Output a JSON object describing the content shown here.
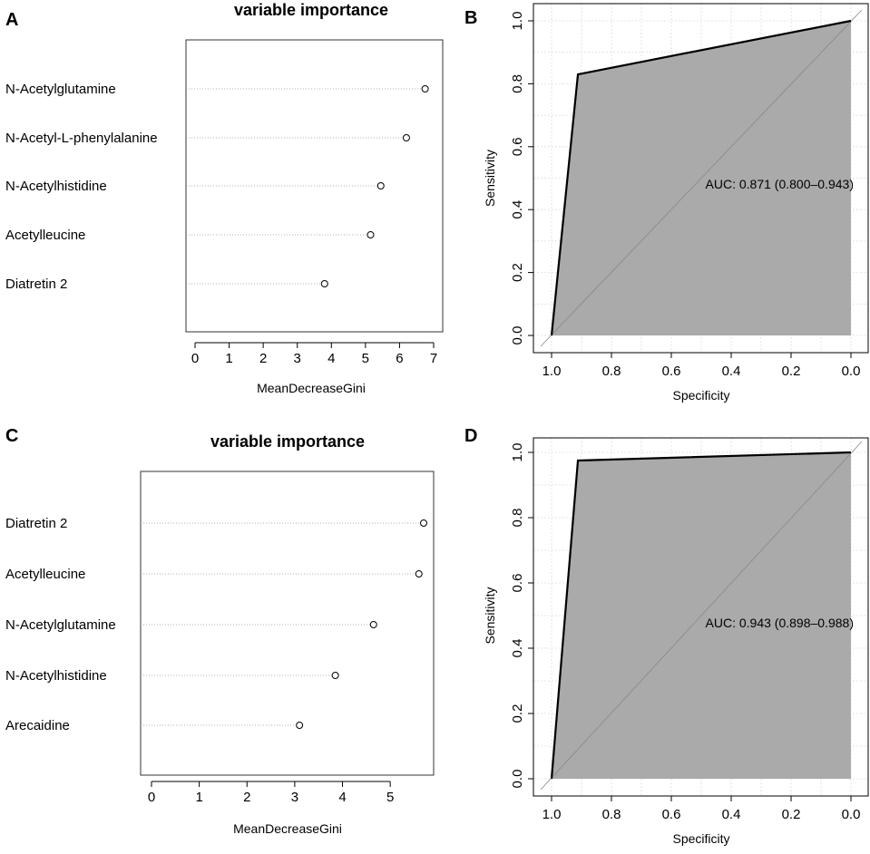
{
  "chart_data": [
    {
      "panel": "A",
      "type": "scatter",
      "title": "variable importance",
      "xlabel": "MeanDecreaseGini",
      "ylabel": "",
      "xlim": [
        0,
        7
      ],
      "xticks": [
        "0",
        "1",
        "2",
        "3",
        "4",
        "5",
        "6",
        "7"
      ],
      "categories": [
        "N-Acetylglutamine",
        "N-Acetyl-L-phenylalanine",
        "N-Acetylhistidine",
        "Acetylleucine",
        "Diatretin 2"
      ],
      "values": [
        6.75,
        6.2,
        5.45,
        5.15,
        3.8
      ]
    },
    {
      "panel": "B",
      "type": "area",
      "title": "",
      "xlabel": "Specificity",
      "ylabel": "Sensitivity",
      "xlim": [
        1.0,
        0.0
      ],
      "ylim": [
        0.0,
        1.0
      ],
      "xticks": [
        "1.0",
        "0.8",
        "0.6",
        "0.4",
        "0.2",
        "0.0"
      ],
      "yticks": [
        "0.0",
        "0.2",
        "0.4",
        "0.6",
        "0.8",
        "1.0"
      ],
      "specificity": [
        1.0,
        0.912,
        0.0
      ],
      "sensitivity": [
        0.0,
        0.83,
        1.0
      ],
      "annotation": "AUC: 0.871 (0.800–0.943)"
    },
    {
      "panel": "C",
      "type": "scatter",
      "title": "variable importance",
      "xlabel": "MeanDecreaseGini",
      "ylabel": "",
      "xlim": [
        0,
        5.7
      ],
      "xticks": [
        "0",
        "1",
        "2",
        "3",
        "4",
        "5"
      ],
      "categories": [
        "Diatretin 2",
        "Acetylleucine",
        "N-Acetylglutamine",
        "N-Acetylhistidine",
        "Arecaidine"
      ],
      "values": [
        5.7,
        5.6,
        4.65,
        3.85,
        3.1
      ]
    },
    {
      "panel": "D",
      "type": "area",
      "title": "",
      "xlabel": "Specificity",
      "ylabel": "Sensitivity",
      "xlim": [
        1.0,
        0.0
      ],
      "ylim": [
        0.0,
        1.0
      ],
      "xticks": [
        "1.0",
        "0.8",
        "0.6",
        "0.4",
        "0.2",
        "0.0"
      ],
      "yticks": [
        "0.0",
        "0.2",
        "0.4",
        "0.6",
        "0.8",
        "1.0"
      ],
      "specificity": [
        1.0,
        0.912,
        0.0
      ],
      "sensitivity": [
        0.0,
        0.975,
        1.0
      ],
      "annotation": "AUC: 0.943 (0.898–0.988)"
    }
  ],
  "colors": {
    "fill": "#aaaaaa",
    "grid": "#dddddd",
    "dotline": "#999999"
  }
}
